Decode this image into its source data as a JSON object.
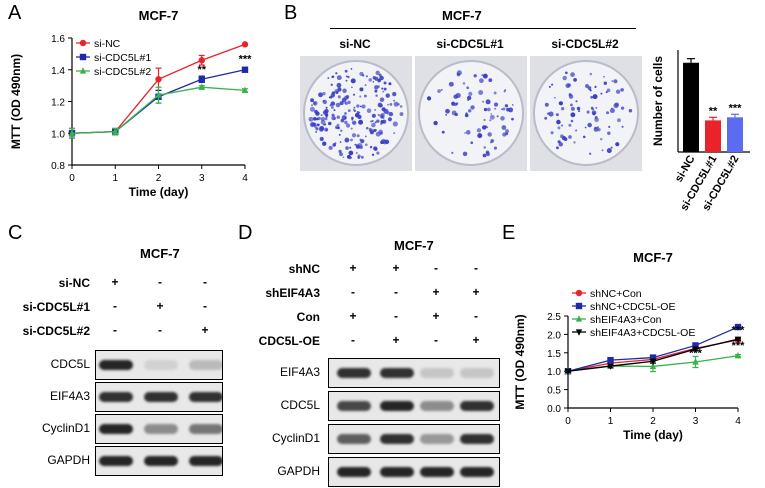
{
  "panels": {
    "A": {
      "label": "A",
      "chart_data": {
        "type": "line",
        "title": "MCF-7",
        "xlabel": "Time (day)",
        "ylabel": "MTT (OD 490nm)",
        "x": [
          0,
          1,
          2,
          3,
          4
        ],
        "xlim": [
          0,
          4
        ],
        "ylim": [
          0.8,
          1.6
        ],
        "yticks": [
          "0.8",
          "1.0",
          "1.2",
          "1.4",
          "1.6"
        ],
        "xticks": [
          "0",
          "1",
          "2",
          "3",
          "4"
        ],
        "series": [
          {
            "name": "si-NC",
            "color": "#e8232a",
            "marker": "circle",
            "values": [
              1.0,
              1.01,
              1.34,
              1.46,
              1.56
            ],
            "err": [
              0.03,
              0.02,
              0.07,
              0.03,
              0.0
            ]
          },
          {
            "name": "si-CDC5L#1",
            "color": "#1f2aa8",
            "marker": "square",
            "values": [
              1.0,
              1.01,
              1.23,
              1.34,
              1.4
            ],
            "err": [
              0.03,
              0.02,
              0.04,
              0.02,
              0.01
            ]
          },
          {
            "name": "si-CDC5L#2",
            "color": "#36b44a",
            "marker": "triangle",
            "values": [
              1.0,
              1.01,
              1.24,
              1.29,
              1.27
            ],
            "err": [
              0.03,
              0.02,
              0.05,
              0.01,
              0.01
            ]
          }
        ],
        "annotations": [
          {
            "x": 3,
            "text": "**"
          },
          {
            "x": 4,
            "text": "***"
          }
        ]
      }
    },
    "B": {
      "label": "B",
      "title": "MCF-7",
      "dish_labels": [
        "si-NC",
        "si-CDC5L#1",
        "si-CDC5L#2"
      ],
      "dish_density": [
        1.0,
        0.35,
        0.4
      ],
      "chart_data": {
        "type": "bar",
        "ylabel": "Number of cells",
        "categories": [
          "si-NC",
          "si-CDC5L#1",
          "si-CDC5L#2"
        ],
        "values": [
          175,
          62,
          68
        ],
        "err": [
          8,
          6,
          6
        ],
        "colors": [
          "#000000",
          "#e8232a",
          "#5b6cf0"
        ],
        "ylim": [
          0,
          200
        ],
        "annotations": [
          "",
          "**",
          "***"
        ]
      }
    },
    "C": {
      "label": "C",
      "title": "MCF-7",
      "rows": [
        {
          "name": "si-NC",
          "signs": [
            "+",
            "-",
            "-"
          ]
        },
        {
          "name": "si-CDC5L#1",
          "signs": [
            "-",
            "+",
            "-"
          ]
        },
        {
          "name": "si-CDC5L#2",
          "signs": [
            "-",
            "-",
            "+"
          ]
        }
      ],
      "blots": [
        {
          "name": "CDC5L",
          "intensity": [
            0.95,
            0.2,
            0.3
          ]
        },
        {
          "name": "EIF4A3",
          "intensity": [
            0.9,
            0.9,
            0.9
          ]
        },
        {
          "name": "CyclinD1",
          "intensity": [
            0.95,
            0.5,
            0.6
          ]
        },
        {
          "name": "GAPDH",
          "intensity": [
            0.95,
            0.95,
            0.95
          ]
        }
      ]
    },
    "D": {
      "label": "D",
      "title": "MCF-7",
      "rows": [
        {
          "name": "shNC",
          "signs": [
            "+",
            "+",
            "-",
            "-"
          ]
        },
        {
          "name": "shEIF4A3",
          "signs": [
            "-",
            "-",
            "+",
            "+"
          ]
        },
        {
          "name": "Con",
          "signs": [
            "+",
            "-",
            "+",
            "-"
          ]
        },
        {
          "name": "CDC5L-OE",
          "signs": [
            "-",
            "+",
            "-",
            "+"
          ]
        }
      ],
      "blots": [
        {
          "name": "EIF4A3",
          "intensity": [
            0.9,
            0.9,
            0.25,
            0.25
          ]
        },
        {
          "name": "CDC5L",
          "intensity": [
            0.8,
            0.95,
            0.5,
            0.9
          ]
        },
        {
          "name": "CyclinD1",
          "intensity": [
            0.7,
            0.9,
            0.45,
            0.9
          ]
        },
        {
          "name": "GAPDH",
          "intensity": [
            0.95,
            0.95,
            0.95,
            0.95
          ]
        }
      ]
    },
    "E": {
      "label": "E",
      "chart_data": {
        "type": "line",
        "title": "MCF-7",
        "xlabel": "Time (day)",
        "ylabel": "MTT (OD 490nm)",
        "x": [
          0,
          1,
          2,
          3,
          4
        ],
        "xlim": [
          0,
          4
        ],
        "ylim": [
          0.0,
          2.5
        ],
        "yticks": [
          "0.0",
          "0.5",
          "1.0",
          "1.5",
          "2.0",
          "2.5"
        ],
        "xticks": [
          "0",
          "1",
          "2",
          "3",
          "4"
        ],
        "series": [
          {
            "name": "shNC+Con",
            "color": "#e8232a",
            "marker": "circle",
            "values": [
              1.0,
              1.22,
              1.32,
              1.62,
              1.85
            ],
            "err": [
              0.03,
              0.05,
              0.05,
              0.05,
              0.03
            ]
          },
          {
            "name": "shNC+CDC5L-OE",
            "color": "#1f2aa8",
            "marker": "square",
            "values": [
              1.0,
              1.3,
              1.37,
              1.7,
              2.2
            ],
            "err": [
              0.03,
              0.05,
              0.05,
              0.05,
              0.02
            ]
          },
          {
            "name": "shEIF4A3+Con",
            "color": "#36b44a",
            "marker": "triangle",
            "values": [
              1.0,
              1.14,
              1.13,
              1.25,
              1.42
            ],
            "err": [
              0.03,
              0.05,
              0.14,
              0.15,
              0.03
            ]
          },
          {
            "name": "shEIF4A3+CDC5L-OE",
            "color": "#000000",
            "marker": "triangle-down",
            "values": [
              1.0,
              1.14,
              1.27,
              1.6,
              1.87
            ],
            "err": [
              0.03,
              0.05,
              0.05,
              0.05,
              0.03
            ]
          }
        ],
        "annotations": [
          {
            "x": 3,
            "text": "***"
          },
          {
            "x": 4,
            "text": "***"
          },
          {
            "x": 4,
            "text": "***"
          }
        ]
      }
    }
  },
  "colors": {
    "dish_bg": "#f2f3f7",
    "colony": "#3a3fc4",
    "blot_bg": "#e8e8e8"
  }
}
